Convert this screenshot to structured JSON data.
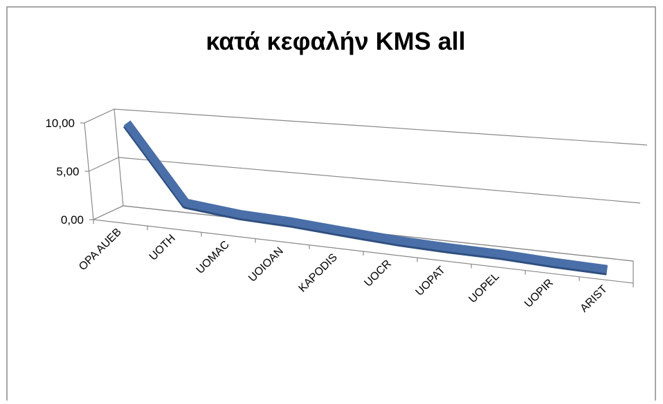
{
  "chart_data": {
    "type": "line",
    "title": "κατά κεφαλήν KMS all",
    "categories": [
      "OPA AUEB",
      "UOTH",
      "UOMAC",
      "UOIOAN",
      "KAPODIS",
      "UOCR",
      "UOPAT",
      "UOPEL",
      "UOPIR",
      "ARIST"
    ],
    "values": [
      9.5,
      1.9,
      1.35,
      1.15,
      0.8,
      0.5,
      0.35,
      0.3,
      0.1,
      0
    ],
    "color": "#4a6fa8",
    "ylim": [
      0,
      10
    ],
    "yticks": [
      {
        "value": 0,
        "label": "0,00"
      },
      {
        "value": 5,
        "label": "5,00"
      },
      {
        "value": 10,
        "label": "10,00"
      }
    ],
    "grid": true
  }
}
